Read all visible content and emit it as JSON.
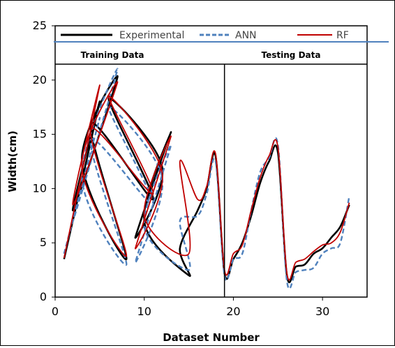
{
  "chart_data": {
    "type": "line",
    "title": "",
    "xlabel": "Dataset Number",
    "ylabel": "Width(cm)",
    "xlim": [
      0,
      35
    ],
    "ylim": [
      0,
      25
    ],
    "xticks": [
      0,
      10,
      20,
      30
    ],
    "yticks": [
      0,
      5,
      10,
      15,
      20,
      25
    ],
    "grid": false,
    "legend_position": "top",
    "x": [
      1,
      2,
      3,
      4,
      5,
      6,
      7,
      8,
      9,
      10,
      11,
      12,
      13,
      14,
      15,
      16,
      17,
      18,
      19,
      20,
      21,
      22,
      23,
      24,
      25,
      26,
      27,
      28,
      29,
      30,
      31,
      32,
      33
    ],
    "series": [
      {
        "name": "Experimental",
        "color": "#000000",
        "dash": "solid",
        "values": [
          3.5,
          8.0,
          12.5,
          16.0,
          18.0,
          18.3,
          20.3,
          3.5,
          5.5,
          7.0,
          9.0,
          12.0,
          15.2,
          4.5,
          2.0,
          8.0,
          10.0,
          13.0,
          2.2,
          3.5,
          5.0,
          7.5,
          10.5,
          12.5,
          13.3,
          2.0,
          2.8,
          3.0,
          4.0,
          4.5,
          5.5,
          6.5,
          8.5
        ]
      },
      {
        "name": "ANN",
        "color": "#4f81bd",
        "dash": "dashed",
        "values": [
          4.0,
          7.0,
          11.0,
          14.5,
          16.5,
          17.5,
          21.0,
          3.0,
          3.2,
          6.5,
          8.5,
          11.0,
          14.0,
          7.0,
          2.5,
          7.5,
          9.5,
          12.5,
          2.0,
          3.5,
          4.0,
          8.0,
          11.5,
          12.8,
          14.0,
          1.5,
          2.3,
          2.5,
          2.7,
          4.0,
          4.5,
          5.0,
          9.3
        ]
      },
      {
        "name": "RF",
        "color": "#c00000",
        "dash": "solid",
        "values": [
          3.6,
          8.5,
          12.0,
          15.5,
          19.5,
          18.5,
          19.8,
          3.8,
          4.5,
          7.5,
          9.5,
          11.5,
          14.8,
          12.5,
          4.0,
          9.0,
          10.2,
          13.2,
          2.5,
          4.0,
          4.8,
          8.0,
          11.0,
          13.0,
          13.8,
          2.2,
          3.2,
          3.5,
          4.2,
          4.8,
          5.0,
          6.0,
          8.7
        ]
      }
    ],
    "dataset_order": [
      1,
      5,
      2,
      7,
      3,
      8,
      4,
      11,
      6,
      12,
      9,
      13,
      10,
      15,
      14,
      16,
      17,
      18,
      19,
      20,
      21,
      22,
      23,
      24,
      25,
      26,
      27,
      28,
      29,
      30,
      31,
      32,
      33
    ],
    "divider_x": 19,
    "sections": [
      "Training Data",
      "Testing Data"
    ]
  }
}
